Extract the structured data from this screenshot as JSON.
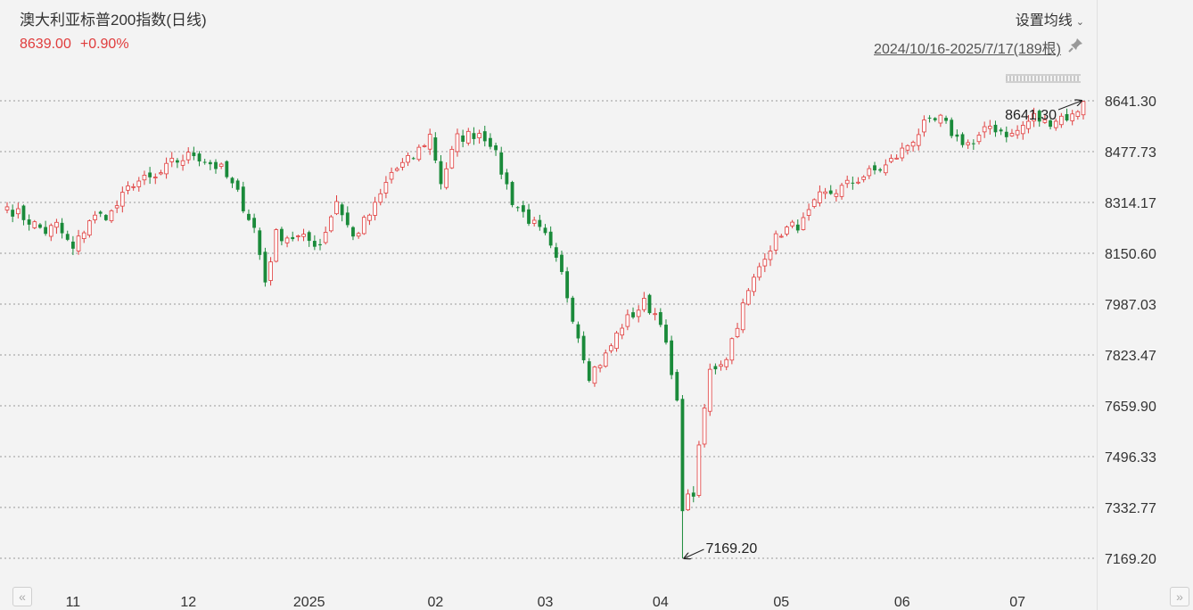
{
  "header": {
    "title": "澳大利亚标普200指数(日线)",
    "last_price": "8639.00",
    "change_pct": "+0.90%",
    "ma_setting_label": "设置均线",
    "date_range": "2024/10/16-2025/7/17(189根)"
  },
  "icons": {
    "ma_dropdown": "chevron-down-icon",
    "pin": "pin-icon",
    "scroll_left": "double-chevron-left-icon",
    "scroll_right": "double-chevron-right-icon"
  },
  "colors": {
    "up": "#e03c3c",
    "down": "#1a8a3a",
    "grid": "#9a9a9a",
    "background": "#f3f3f3"
  },
  "chart_data": {
    "type": "candlestick",
    "y_ticks": [
      "8641.30",
      "8477.73",
      "8314.17",
      "8150.60",
      "7987.03",
      "7823.47",
      "7659.90",
      "7496.33",
      "7332.77",
      "7169.20"
    ],
    "ylim": [
      7169.2,
      8641.3
    ],
    "x_ticks": [
      "11",
      "12",
      "2025",
      "02",
      "03",
      "04",
      "05",
      "06",
      "07"
    ],
    "annotations": {
      "max_label": "8641.30",
      "min_label": "7169.20"
    },
    "anchors": [
      [
        "2024-10-16",
        8300
      ],
      [
        "2024-10-20",
        8330
      ],
      [
        "2024-10-25",
        8220
      ],
      [
        "2024-10-29",
        8240
      ],
      [
        "2024-11-01",
        8160
      ],
      [
        "2024-11-06",
        8260
      ],
      [
        "2024-11-12",
        8280
      ],
      [
        "2024-11-18",
        8380
      ],
      [
        "2024-11-22",
        8390
      ],
      [
        "2024-11-27",
        8440
      ],
      [
        "2024-12-03",
        8470
      ],
      [
        "2024-12-10",
        8420
      ],
      [
        "2024-12-13",
        8340
      ],
      [
        "2024-12-18",
        8230
      ],
      [
        "2024-12-20",
        8060
      ],
      [
        "2024-12-24",
        8210
      ],
      [
        "2024-12-30",
        8200
      ],
      [
        "2025-01-03",
        8180
      ],
      [
        "2025-01-08",
        8320
      ],
      [
        "2025-01-13",
        8200
      ],
      [
        "2025-01-17",
        8300
      ],
      [
        "2025-01-22",
        8410
      ],
      [
        "2025-01-28",
        8460
      ],
      [
        "2025-01-31",
        8530
      ],
      [
        "2025-02-04",
        8380
      ],
      [
        "2025-02-07",
        8520
      ],
      [
        "2025-02-13",
        8540
      ],
      [
        "2025-02-17",
        8510
      ],
      [
        "2025-02-21",
        8320
      ],
      [
        "2025-02-26",
        8260
      ],
      [
        "2025-03-03",
        8200
      ],
      [
        "2025-03-06",
        8080
      ],
      [
        "2025-03-10",
        7950
      ],
      [
        "2025-03-13",
        7760
      ],
      [
        "2025-03-18",
        7820
      ],
      [
        "2025-03-21",
        7920
      ],
      [
        "2025-03-27",
        7990
      ],
      [
        "2025-04-01",
        7940
      ],
      [
        "2025-04-04",
        7660
      ],
      [
        "2025-04-07",
        7340
      ],
      [
        "2025-04-09",
        7380
      ],
      [
        "2025-04-11",
        7650
      ],
      [
        "2025-04-14",
        7770
      ],
      [
        "2025-04-17",
        7820
      ],
      [
        "2025-04-22",
        7980
      ],
      [
        "2025-04-28",
        8150
      ],
      [
        "2025-05-01",
        8220
      ],
      [
        "2025-05-07",
        8250
      ],
      [
        "2025-05-12",
        8330
      ],
      [
        "2025-05-16",
        8360
      ],
      [
        "2025-05-22",
        8400
      ],
      [
        "2025-05-28",
        8430
      ],
      [
        "2025-06-02",
        8480
      ],
      [
        "2025-06-06",
        8560
      ],
      [
        "2025-06-11",
        8580
      ],
      [
        "2025-06-16",
        8520
      ],
      [
        "2025-06-19",
        8500
      ],
      [
        "2025-06-24",
        8560
      ],
      [
        "2025-06-30",
        8530
      ],
      [
        "2025-07-04",
        8590
      ],
      [
        "2025-07-08",
        8570
      ],
      [
        "2025-07-11",
        8590
      ],
      [
        "2025-07-15",
        8590
      ],
      [
        "2025-07-17",
        8639
      ]
    ],
    "extremes": [
      {
        "date": "2025-07-17",
        "high": 8641.3
      },
      {
        "date": "2025-04-07",
        "low": 7169.2
      }
    ]
  }
}
